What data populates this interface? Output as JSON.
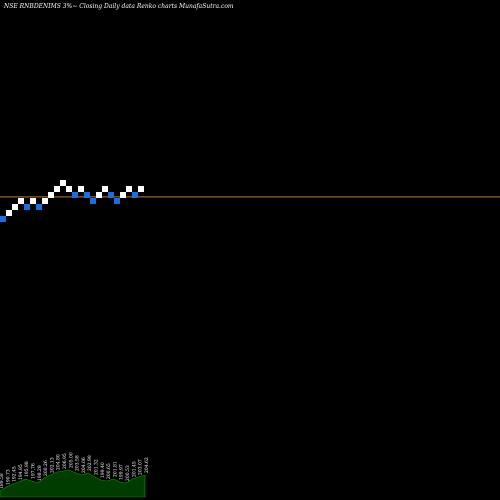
{
  "title": "NSE RNBDENIMS 3%~  Closing Daily data  Renko  charts MunafaSutra.com",
  "colors": {
    "background": "#000000",
    "up_brick": "#ffffff",
    "down_brick": "#1a6fe0",
    "reference_line": "#b87a2e",
    "volume_fill": "#003b00",
    "volume_stroke": "#009a00"
  },
  "chart_data": {
    "type": "renko",
    "reference_level": 200.4,
    "bricks": [
      {
        "direction": "down",
        "price": 187.5
      },
      {
        "direction": "up",
        "price": 191.0
      },
      {
        "direction": "up",
        "price": 194.5
      },
      {
        "direction": "up",
        "price": 198.0
      },
      {
        "direction": "down",
        "price": 194.5
      },
      {
        "direction": "up",
        "price": 198.0
      },
      {
        "direction": "down",
        "price": 194.5
      },
      {
        "direction": "up",
        "price": 198.0
      },
      {
        "direction": "up",
        "price": 201.5
      },
      {
        "direction": "up",
        "price": 205.0
      },
      {
        "direction": "up",
        "price": 208.5
      },
      {
        "direction": "up",
        "price": 205.0
      },
      {
        "direction": "down",
        "price": 201.5
      },
      {
        "direction": "up",
        "price": 205.0
      },
      {
        "direction": "down",
        "price": 201.5
      },
      {
        "direction": "down",
        "price": 198.0
      },
      {
        "direction": "up",
        "price": 201.5
      },
      {
        "direction": "up",
        "price": 205.0
      },
      {
        "direction": "down",
        "price": 201.5
      },
      {
        "direction": "down",
        "price": 198.0
      },
      {
        "direction": "up",
        "price": 201.5
      },
      {
        "direction": "up",
        "price": 205.0
      },
      {
        "direction": "down",
        "price": 201.5
      },
      {
        "direction": "up",
        "price": 205.0
      }
    ],
    "volume_labels": [
      "189.58",
      "190.73",
      "192.45",
      "194.95",
      "195.98",
      "197.76",
      "198.29",
      "200.26",
      "202.13",
      "204.80",
      "206.95",
      "205.00",
      "203.58",
      "204.06",
      "202.99",
      "201.32",
      "199.40",
      "200.65",
      "201.81",
      "199.97",
      "200.53",
      "201.45",
      "203.07",
      "204.62"
    ],
    "volume_values": [
      6,
      10,
      13,
      15,
      18,
      16,
      14,
      19,
      22,
      25,
      26,
      27,
      24,
      22,
      24,
      20,
      17,
      16,
      18,
      15,
      14,
      18,
      20,
      22
    ]
  }
}
